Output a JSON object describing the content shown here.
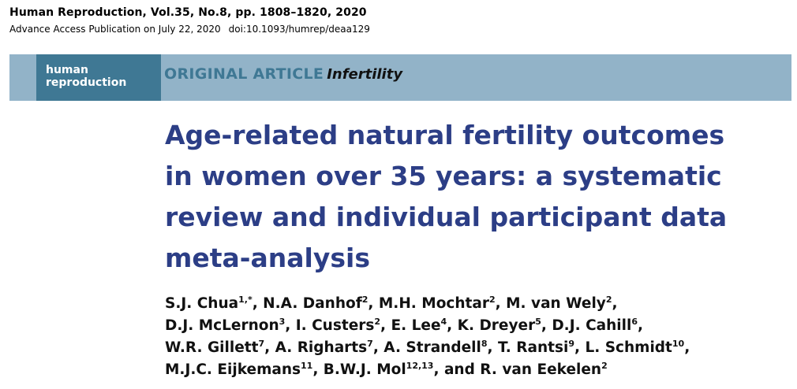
{
  "header": {
    "citation": "Human Reproduction, Vol.35, No.8, pp. 1808–1820, 2020",
    "access": "Advance Access Publication on July 22, 2020",
    "doi": "doi:10.1093/humrep/deaa129"
  },
  "banner": {
    "logo_line1": "human",
    "logo_line2": "reproduction",
    "article_type": "ORIGINAL ARTICLE",
    "subject": "Infertility"
  },
  "title_lines": [
    "Age-related natural fertility outcomes",
    "in women over 35 years: a systematic",
    "review and individual participant data",
    "meta-analysis"
  ],
  "author_lines": [
    [
      {
        "name": "S.J. Chua",
        "sup": "1,*",
        "sep": ", "
      },
      {
        "name": "N.A. Danhof",
        "sup": "2",
        "sep": ", "
      },
      {
        "name": "M.H. Mochtar",
        "sup": "2",
        "sep": ", "
      },
      {
        "name": "M. van Wely",
        "sup": "2",
        "sep": ","
      }
    ],
    [
      {
        "name": "D.J. McLernon",
        "sup": "3",
        "sep": ", "
      },
      {
        "name": "I. Custers",
        "sup": "2",
        "sep": ", "
      },
      {
        "name": "E. Lee",
        "sup": "4",
        "sep": ", "
      },
      {
        "name": "K. Dreyer",
        "sup": "5",
        "sep": ", "
      },
      {
        "name": "D.J. Cahill",
        "sup": "6",
        "sep": ","
      }
    ],
    [
      {
        "name": "W.R. Gillett",
        "sup": "7",
        "sep": ", "
      },
      {
        "name": "A. Righarts",
        "sup": "7",
        "sep": ", "
      },
      {
        "name": "A. Strandell",
        "sup": "8",
        "sep": ", "
      },
      {
        "name": "T. Rantsi",
        "sup": "9",
        "sep": ", "
      },
      {
        "name": "L. Schmidt",
        "sup": "10",
        "sep": ","
      }
    ],
    [
      {
        "name": "M.J.C. Eijkemans",
        "sup": "11",
        "sep": ", "
      },
      {
        "name": "B.W.J. Mol",
        "sup": "12,13",
        "sep": ", "
      },
      {
        "name": "and R. van Eekelen",
        "sup": "2",
        "sep": ""
      }
    ]
  ]
}
